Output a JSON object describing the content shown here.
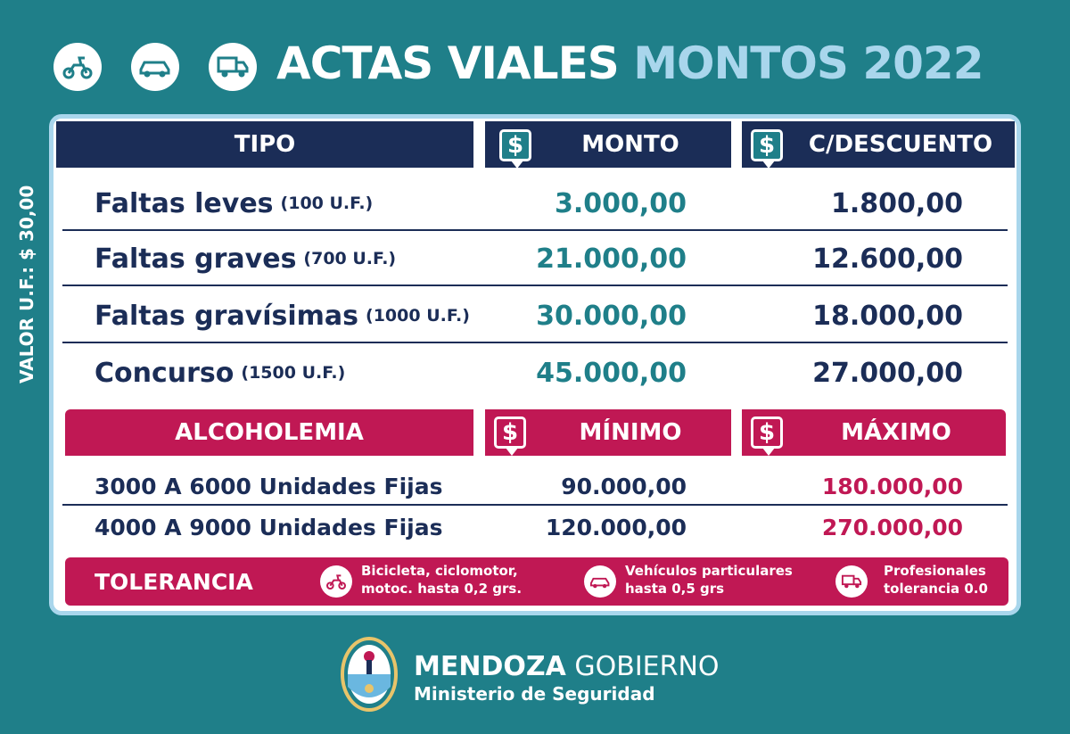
{
  "header": {
    "icons": [
      "scooter-icon",
      "car-icon",
      "truck-icon"
    ],
    "title_main": "ACTAS VIALES",
    "title_accent": "MONTOS 2022"
  },
  "side_note": "VALOR U.F.: $ 30,00",
  "fines_table": {
    "headers": {
      "tipo": "TIPO",
      "monto": "MONTO",
      "descuento": "C/DESCUENTO"
    },
    "currency_symbol": "$",
    "rows": [
      {
        "tipo": "Faltas leves",
        "uf": "(100 U.F.)",
        "monto": "3.000,00",
        "descuento": "1.800,00"
      },
      {
        "tipo": "Faltas graves",
        "uf": "(700 U.F.)",
        "monto": "21.000,00",
        "descuento": "12.600,00"
      },
      {
        "tipo": "Faltas gravísimas",
        "uf": "(1000 U.F.)",
        "monto": "30.000,00",
        "descuento": "18.000,00"
      },
      {
        "tipo": "Concurso",
        "uf": "(1500 U.F.)",
        "monto": "45.000,00",
        "descuento": "27.000,00"
      }
    ]
  },
  "alcohol_table": {
    "headers": {
      "label": "ALCOHOLEMIA",
      "min": "MÍNIMO",
      "max": "MÁXIMO"
    },
    "rows": [
      {
        "label": "3000 A 6000 Unidades Fijas",
        "min": "90.000,00",
        "max": "180.000,00"
      },
      {
        "label": "4000 A 9000 Unidades Fijas",
        "min": "120.000,00",
        "max": "270.000,00"
      }
    ]
  },
  "tolerance": {
    "label": "TOLERANCIA",
    "items": [
      {
        "icon": "scooter-icon",
        "line1": "Bicicleta, ciclomotor,",
        "line2": "motoc. hasta 0,2 grs."
      },
      {
        "icon": "car-icon",
        "line1": "Vehículos particulares",
        "line2": "hasta 0,5 grs"
      },
      {
        "icon": "truck-icon",
        "line1": "Profesionales",
        "line2": "tolerancia 0.0"
      }
    ]
  },
  "footer": {
    "brand_bold": "MENDOZA",
    "brand_light": "GOBIERNO",
    "ministry": "Ministerio de Seguridad"
  },
  "colors": {
    "background": "#1f7f89",
    "navy": "#1b2d57",
    "accent_red": "#c01854",
    "light_blue": "#a9d6ec",
    "teal_value": "#1f7f89"
  }
}
